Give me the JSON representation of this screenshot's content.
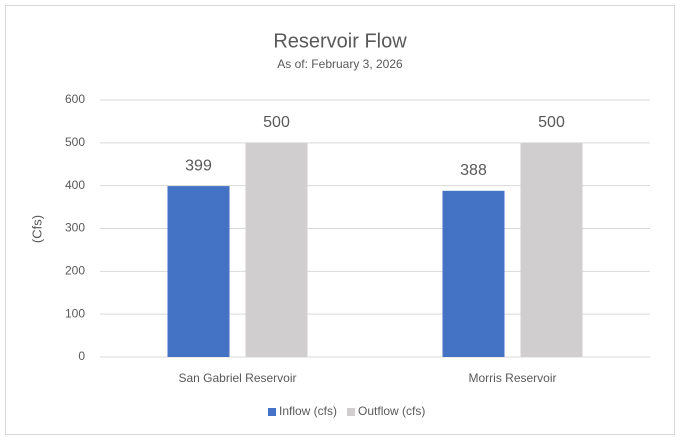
{
  "chart_data": {
    "type": "bar",
    "title": "Reservoir Flow",
    "subtitle": "As of: February 3, 2026",
    "y_label": "(Cfs)",
    "categories": [
      "San Gabriel Reservoir",
      "Morris Reservoir"
    ],
    "series": [
      {
        "name": "Inflow (cfs)",
        "color": "#4472c4",
        "values": [
          399,
          388
        ]
      },
      {
        "name": "Outflow (cfs)",
        "color": "#d0cece",
        "values": [
          500,
          500
        ]
      }
    ],
    "ylim": [
      0,
      600
    ],
    "yticks": [
      0,
      100,
      200,
      300,
      400,
      500,
      600
    ],
    "grid": true,
    "legend": "bottom"
  }
}
